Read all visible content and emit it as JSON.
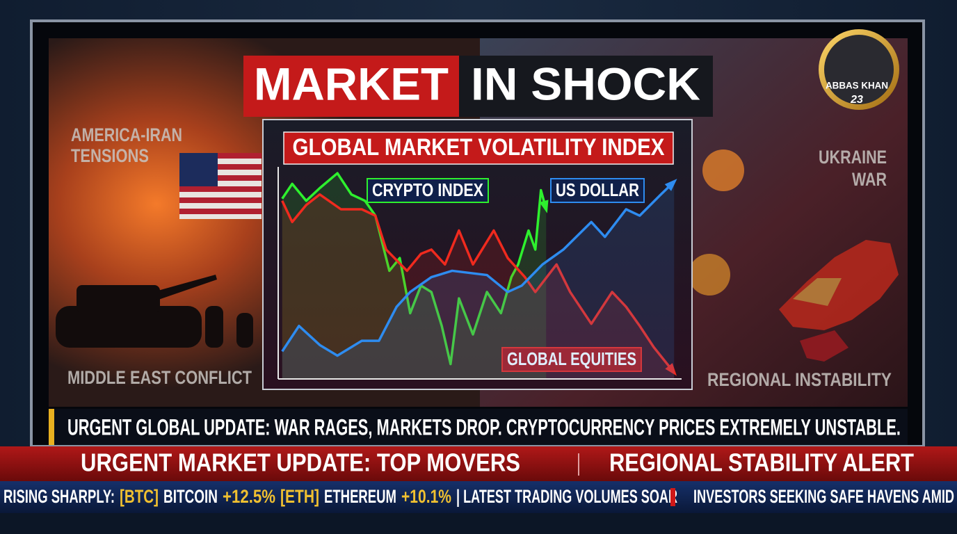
{
  "header": {
    "title_part1": "MARKET",
    "title_part2": "IN SHOCK"
  },
  "badge": {
    "name": "ABBAS KHAN",
    "number": "23"
  },
  "side_labels": {
    "top_left": [
      "AMERICA-IRAN",
      "TENSIONS"
    ],
    "bottom_left": "MIDDLE EAST CONFLICT",
    "top_right": [
      "UKRAINE",
      "WAR"
    ],
    "bottom_right": "REGIONAL INSTABILITY"
  },
  "chart": {
    "type": "line",
    "title": "GLOBAL MARKET VOLATILITY INDEX",
    "xlim": [
      0,
      100
    ],
    "ylim": [
      0,
      100
    ],
    "series": [
      {
        "name": "CRYPTO INDEX",
        "color": "#2ef02e",
        "x": [
          1,
          3.5,
          7,
          10.4,
          14.8,
          18.3,
          21.7,
          24.3,
          27.8,
          30.4,
          33,
          35.7,
          38.3,
          40.9,
          43.1,
          45.2,
          48.7,
          52.2,
          55.7,
          58.3,
          60,
          62.6,
          64.3,
          65.7,
          67
        ],
        "values": [
          85,
          92,
          84,
          90,
          97,
          87,
          84,
          77,
          51,
          57,
          31,
          44,
          41,
          25,
          7,
          38,
          21,
          41,
          31,
          48,
          54,
          70,
          61,
          89,
          80
        ]
      },
      {
        "name": "GLOBAL EQUITIES",
        "color": "#f02a1e",
        "x": [
          1,
          3.5,
          7,
          10.4,
          15.7,
          20.9,
          24.3,
          27,
          32.2,
          35.7,
          38.3,
          41.7,
          45.2,
          48.7,
          53.9,
          57.4,
          61.7,
          64.3,
          69.6,
          73,
          78.3,
          83.5,
          87,
          90.4,
          93.9,
          99
        ],
        "values": [
          84,
          74,
          82,
          87,
          80,
          80,
          77,
          61,
          51,
          59,
          61,
          54,
          70,
          54,
          70,
          57,
          48,
          41,
          54,
          41,
          26,
          41,
          34,
          25,
          15,
          3
        ]
      },
      {
        "name": "US DOLLAR",
        "color": "#2e8cf0",
        "x": [
          1,
          5.2,
          10.4,
          14.8,
          20.9,
          25.2,
          29.6,
          33,
          38.3,
          43.5,
          52.2,
          57.4,
          60.9,
          66.1,
          71.3,
          78.3,
          81.7,
          87,
          90.4,
          95.7,
          99
        ],
        "values": [
          13,
          25,
          16,
          11,
          18,
          18,
          34,
          41,
          48,
          51,
          49,
          41,
          44,
          54,
          61,
          74,
          67,
          80,
          77,
          87,
          93
        ]
      }
    ]
  },
  "news_ticker": "URGENT GLOBAL UPDATE: WAR RAGES, MARKETS DROP. CRYPTOCURRENCY PRICES EXTREMELY UNSTABLE.",
  "alert_bar": {
    "left": "URGENT MARKET UPDATE: TOP MOVERS",
    "right": "REGIONAL STABILITY ALERT"
  },
  "bottom_ticker": {
    "segments": [
      "RISING SHARPLY:",
      "[BTC]",
      "BITCOIN",
      "+12.5%",
      "[ETH]",
      "ETHEREUM",
      "+10.1%",
      "| LATEST TRADING VOLUMES SOAR"
    ],
    "right": "INVESTORS SEEKING SAFE HAVENS AMID"
  }
}
